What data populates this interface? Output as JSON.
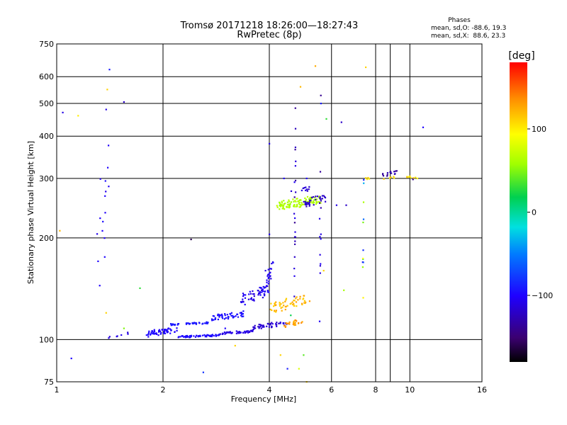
{
  "chart_data": {
    "type": "scatter",
    "title": "Tromsø 20171218 18:26:00—18:27:43",
    "subtitle": "RwPretec (8p)",
    "xlabel": "Frequency [MHz]",
    "ylabel": "Stationary phase Virtual Height [km]",
    "x_scale": "log",
    "y_scale": "log",
    "xlim": [
      1,
      16
    ],
    "ylim": [
      75,
      750
    ],
    "xticks": [
      1,
      2,
      4,
      6,
      8,
      10,
      16
    ],
    "yticks": [
      75,
      100,
      200,
      300,
      400,
      500,
      600,
      750
    ],
    "grid": true,
    "stats": {
      "heading": "Phases",
      "line_o": "mean, sd,O: -88.6, 19.3",
      "line_x": "mean, sd,X:  88.6, 23.3"
    },
    "colorbar": {
      "label": "[deg]",
      "range": [
        -180,
        180
      ],
      "ticks": [
        -100,
        0,
        100
      ],
      "tick_labels": [
        "−100",
        "0",
        "100"
      ]
    },
    "clusters": [
      {
        "x0": 1.78,
        "x1": 2.2,
        "y0": 101,
        "y1": 110,
        "ph0": -105,
        "ph1": -95,
        "count": 60
      },
      {
        "x0": 2.2,
        "x1": 2.9,
        "y0": 101,
        "y1": 104,
        "ph0": -100,
        "ph1": -95,
        "count": 60
      },
      {
        "x0": 2.9,
        "x1": 3.6,
        "y0": 103,
        "y1": 107,
        "ph0": -115,
        "ph1": -105,
        "count": 45
      },
      {
        "x0": 3.6,
        "x1": 4.5,
        "y0": 107,
        "y1": 114,
        "ph0": -120,
        "ph1": -110,
        "count": 45
      },
      {
        "x0": 2.1,
        "x1": 2.7,
        "y0": 110,
        "y1": 113,
        "ph0": -95,
        "ph1": -90,
        "count": 40
      },
      {
        "x0": 2.7,
        "x1": 3.4,
        "y0": 113,
        "y1": 122,
        "ph0": -100,
        "ph1": -90,
        "count": 50
      },
      {
        "x0": 3.3,
        "x1": 4.0,
        "y0": 125,
        "y1": 148,
        "ph0": -115,
        "ph1": -95,
        "count": 60
      },
      {
        "x0": 3.9,
        "x1": 4.1,
        "y0": 140,
        "y1": 175,
        "ph0": -110,
        "ph1": -100,
        "count": 20
      },
      {
        "x0": 4.0,
        "x1": 5.1,
        "y0": 118,
        "y1": 138,
        "ph0": 110,
        "ph1": 130,
        "count": 55
      },
      {
        "x0": 4.4,
        "x1": 5.0,
        "y0": 108,
        "y1": 116,
        "ph0": 120,
        "ph1": 140,
        "count": 25
      },
      {
        "x0": 4.2,
        "x1": 5.6,
        "y0": 240,
        "y1": 270,
        "ph0": 55,
        "ph1": 70,
        "count": 110
      },
      {
        "x0": 5.0,
        "x1": 5.8,
        "y0": 240,
        "y1": 275,
        "ph0": -130,
        "ph1": -115,
        "count": 35
      },
      {
        "x0": 4.6,
        "x1": 5.2,
        "y0": 265,
        "y1": 285,
        "ph0": -120,
        "ph1": -110,
        "count": 10
      },
      {
        "x0": 8.3,
        "x1": 9.2,
        "y0": 298,
        "y1": 320,
        "ph0": -140,
        "ph1": -120,
        "count": 14
      },
      {
        "x0": 7.4,
        "x1": 10.5,
        "y0": 296,
        "y1": 306,
        "ph0": 95,
        "ph1": 115,
        "count": 16
      },
      {
        "x0": 4.7,
        "x1": 4.75,
        "y0": 80,
        "y1": 630,
        "ph0": -140,
        "ph1": -100,
        "count": 22
      },
      {
        "x0": 5.55,
        "x1": 5.6,
        "y0": 80,
        "y1": 620,
        "ph0": -140,
        "ph1": -100,
        "count": 12
      },
      {
        "x0": 7.35,
        "x1": 7.4,
        "y0": 80,
        "y1": 380,
        "ph0": -110,
        "ph1": 100,
        "count": 12
      },
      {
        "x0": 1.3,
        "x1": 1.42,
        "y0": 100,
        "y1": 520,
        "ph0": -110,
        "ph1": -95,
        "count": 16
      },
      {
        "x0": 1.4,
        "x1": 1.6,
        "y0": 100,
        "y1": 106,
        "ph0": -115,
        "ph1": -100,
        "count": 7
      }
    ],
    "points": [
      [
        1.04,
        470,
        -110
      ],
      [
        1.02,
        210,
        120
      ],
      [
        1.1,
        88,
        -100
      ],
      [
        1.15,
        460,
        100
      ],
      [
        1.38,
        480,
        -110
      ],
      [
        1.39,
        550,
        110
      ],
      [
        1.41,
        630,
        -90
      ],
      [
        1.55,
        505,
        -120
      ],
      [
        1.38,
        120,
        110
      ],
      [
        1.55,
        108,
        50
      ],
      [
        1.72,
        142,
        30
      ],
      [
        2.4,
        198,
        -160
      ],
      [
        2.6,
        80,
        -80
      ],
      [
        3.2,
        96,
        110
      ],
      [
        4.0,
        205,
        -110
      ],
      [
        4.3,
        90,
        110
      ],
      [
        4.6,
        118,
        20
      ],
      [
        4.85,
        82,
        80
      ],
      [
        5.0,
        90,
        40
      ],
      [
        5.8,
        450,
        30
      ],
      [
        5.4,
        645,
        125
      ],
      [
        6.4,
        440,
        -120
      ],
      [
        6.2,
        250,
        -110
      ],
      [
        6.6,
        250,
        -120
      ],
      [
        6.5,
        140,
        60
      ],
      [
        7.5,
        640,
        110
      ],
      [
        10.9,
        425,
        -100
      ],
      [
        10.5,
        300,
        95
      ],
      [
        10.2,
        298,
        -140
      ],
      [
        5.7,
        160,
        110
      ],
      [
        5.6,
        500,
        -90
      ],
      [
        4.9,
        560,
        120
      ],
      [
        5.1,
        300,
        -100
      ],
      [
        5.1,
        75,
        110
      ],
      [
        4.5,
        82,
        -90
      ],
      [
        4.4,
        300,
        -100
      ],
      [
        4.0,
        380,
        -110
      ],
      [
        3.9,
        160,
        -110
      ],
      [
        3.0,
        108,
        -100
      ],
      [
        5.2,
        130,
        130
      ]
    ]
  }
}
